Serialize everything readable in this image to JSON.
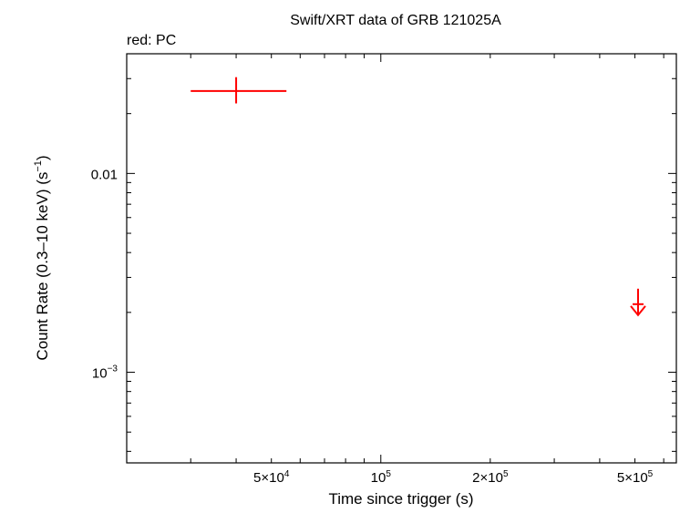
{
  "chart_data": {
    "type": "scatter",
    "title": "Swift/XRT data of GRB 121025A",
    "subtitle": "red: PC",
    "xlabel": "Time since trigger (s)",
    "ylabel": "Count Rate (0.3–10 keV) (s",
    "ylabel_sup": "−1",
    "ylabel_end": ")",
    "x_scale": "log",
    "y_scale": "log",
    "xlim": [
      20000,
      650000
    ],
    "ylim": [
      0.00035,
      0.04
    ],
    "x_ticks": [
      {
        "value": 50000,
        "base": "5×10",
        "exp": "4"
      },
      {
        "value": 100000,
        "base": "10",
        "exp": "5"
      },
      {
        "value": 200000,
        "base": "2×10",
        "exp": "5"
      },
      {
        "value": 500000,
        "base": "5×10",
        "exp": "5"
      }
    ],
    "y_ticks": [
      {
        "value": 0.01,
        "base": "0.01",
        "exp": ""
      },
      {
        "value": 0.001,
        "base": "10",
        "exp": "−3"
      }
    ],
    "color": "#ff0000",
    "series": [
      {
        "points": [
          {
            "x": 40000,
            "y": 0.026,
            "xerr": [
              30000,
              55000
            ],
            "yerr": [
              0.0225,
              0.0305
            ],
            "upper_limit": false
          },
          {
            "x": 510000,
            "y": 0.0022,
            "upper_limit": true
          }
        ]
      }
    ]
  }
}
